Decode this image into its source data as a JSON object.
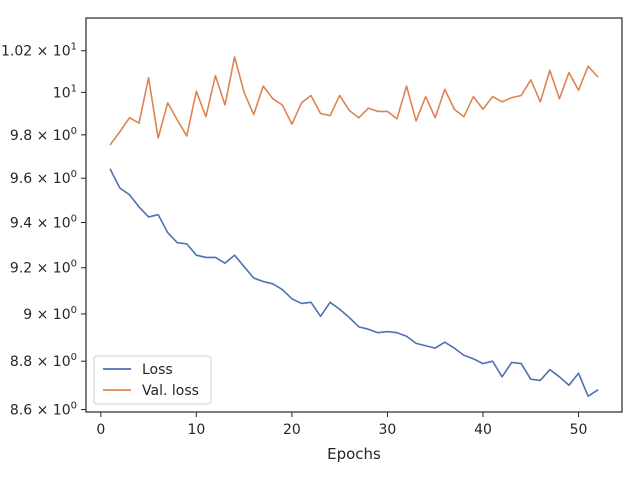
{
  "chart_data": {
    "type": "line",
    "title": "",
    "xlabel": "Epochs",
    "ylabel": "",
    "yscale": "log",
    "xlim": [
      -1.55,
      54.55
    ],
    "ylim": [
      8.59,
      10.36
    ],
    "grid": false,
    "legend_position": "lower-left",
    "x_ticks": [
      {
        "value": 0,
        "label": "0"
      },
      {
        "value": 10,
        "label": "10"
      },
      {
        "value": 20,
        "label": "20"
      },
      {
        "value": 30,
        "label": "30"
      },
      {
        "value": 40,
        "label": "40"
      },
      {
        "value": 50,
        "label": "50"
      }
    ],
    "y_ticks": [
      {
        "value": 8.6,
        "label_base": "8.6 × 10",
        "label_exp": "0"
      },
      {
        "value": 8.8,
        "label_base": "8.8 × 10",
        "label_exp": "0"
      },
      {
        "value": 9.0,
        "label_base": "9 × 10",
        "label_exp": "0"
      },
      {
        "value": 9.2,
        "label_base": "9.2 × 10",
        "label_exp": "0"
      },
      {
        "value": 9.4,
        "label_base": "9.4 × 10",
        "label_exp": "0"
      },
      {
        "value": 9.6,
        "label_base": "9.6 × 10",
        "label_exp": "0"
      },
      {
        "value": 9.8,
        "label_base": "9.8 × 10",
        "label_exp": "0"
      },
      {
        "value": 10.0,
        "label_base": "10",
        "label_exp": "1"
      },
      {
        "value": 10.2,
        "label_base": "1.02 × 10",
        "label_exp": "1"
      }
    ],
    "x": [
      1,
      2,
      3,
      4,
      5,
      6,
      7,
      8,
      9,
      10,
      11,
      12,
      13,
      14,
      15,
      16,
      17,
      18,
      19,
      20,
      21,
      22,
      23,
      24,
      25,
      26,
      27,
      28,
      29,
      30,
      31,
      32,
      33,
      34,
      35,
      36,
      37,
      38,
      39,
      40,
      41,
      42,
      43,
      44,
      45,
      46,
      47,
      48,
      49,
      50,
      51,
      52
    ],
    "series": [
      {
        "name": "Loss",
        "color": "#4c72b0",
        "values": [
          9.64,
          9.555,
          9.525,
          9.47,
          9.425,
          9.435,
          9.355,
          9.31,
          9.305,
          9.255,
          9.245,
          9.245,
          9.22,
          9.255,
          9.205,
          9.155,
          9.14,
          9.13,
          9.105,
          9.065,
          9.045,
          9.05,
          8.99,
          9.05,
          9.02,
          8.985,
          8.945,
          8.935,
          8.92,
          8.925,
          8.92,
          8.905,
          8.875,
          8.865,
          8.855,
          8.88,
          8.855,
          8.825,
          8.81,
          8.79,
          8.8,
          8.735,
          8.795,
          8.79,
          8.725,
          8.72,
          8.765,
          8.735,
          8.7,
          8.75,
          8.655,
          8.68
        ]
      },
      {
        "name": "Val. loss",
        "color": "#dd8452",
        "values": [
          9.755,
          9.815,
          9.88,
          9.855,
          10.07,
          9.785,
          9.95,
          9.87,
          9.795,
          10.005,
          9.885,
          10.08,
          9.94,
          10.17,
          10.0,
          9.895,
          10.03,
          9.97,
          9.94,
          9.85,
          9.95,
          9.985,
          9.9,
          9.89,
          9.985,
          9.915,
          9.88,
          9.925,
          9.91,
          9.91,
          9.875,
          10.03,
          9.865,
          9.98,
          9.88,
          10.015,
          9.92,
          9.885,
          9.98,
          9.92,
          9.98,
          9.955,
          9.975,
          9.985,
          10.06,
          9.955,
          10.105,
          9.97,
          10.095,
          10.01,
          10.125,
          10.075
        ]
      }
    ]
  }
}
